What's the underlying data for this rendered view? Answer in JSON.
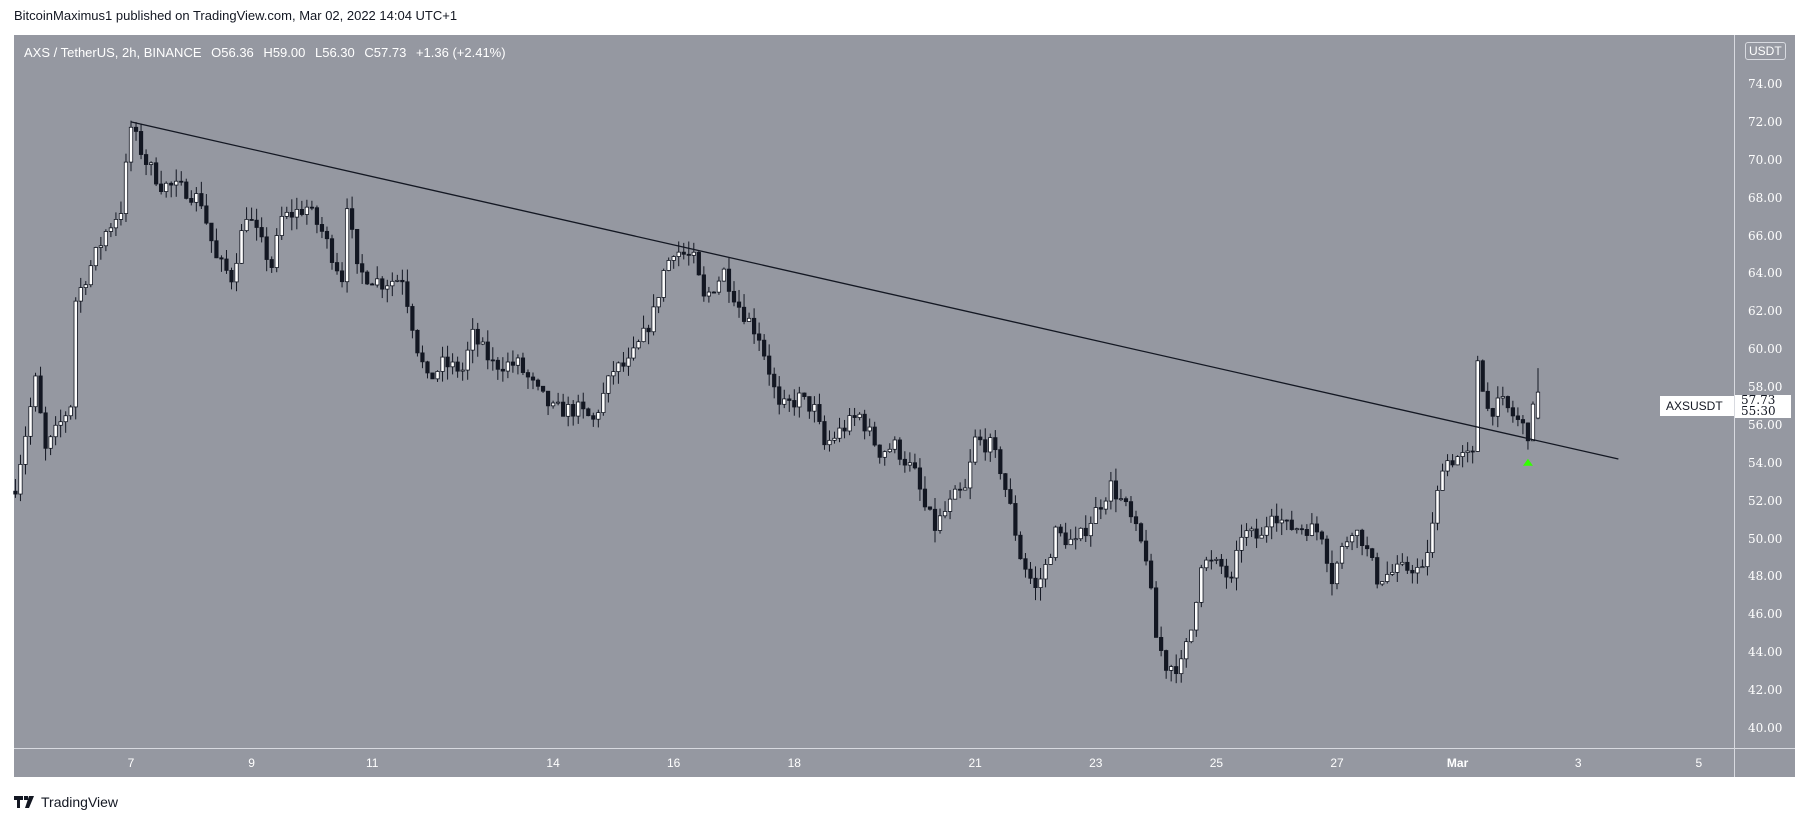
{
  "header": {
    "published": "BitcoinMaximus1 published on TradingView.com, Mar 02, 2022 14:04 UTC+1"
  },
  "legend": {
    "symbol": "AXS / TetherUS, 2h, BINANCE",
    "o_key": "O",
    "o": "56.36",
    "h_key": "H",
    "h": "59.00",
    "l_key": "L",
    "l": "56.30",
    "c_key": "C",
    "c": "57.73",
    "change": "+1.36 (+2.41%)"
  },
  "currency_badge": "USDT",
  "last_price_tag": {
    "symbol": "AXSUSDT",
    "price": "57.73",
    "countdown": "55:30"
  },
  "footer": {
    "brand": "TradingView"
  },
  "colors": {
    "background": "#9598a1",
    "up_body": "#ffffff",
    "down_body": "#131722",
    "wick": "#131722",
    "trendline": "#131722",
    "marker": "#33ff00"
  },
  "chart_data": {
    "type": "candlestick",
    "title": "AXS / TetherUS, 2h, BINANCE",
    "interval": "2h",
    "ylim": [
      39,
      76
    ],
    "y_ticks": [
      "74.00",
      "72.00",
      "70.00",
      "68.00",
      "66.00",
      "64.00",
      "62.00",
      "60.00",
      "58.00",
      "56.00",
      "54.00",
      "52.00",
      "50.00",
      "48.00",
      "46.00",
      "44.00",
      "42.00",
      "40.00"
    ],
    "x_ticks": [
      {
        "label": "7",
        "date": "2022-02-07T00:00"
      },
      {
        "label": "9",
        "date": "2022-02-09T00:00"
      },
      {
        "label": "11",
        "date": "2022-02-11T00:00"
      },
      {
        "label": "14",
        "date": "2022-02-14T00:00"
      },
      {
        "label": "16",
        "date": "2022-02-16T00:00"
      },
      {
        "label": "18",
        "date": "2022-02-18T00:00"
      },
      {
        "label": "21",
        "date": "2022-02-21T00:00"
      },
      {
        "label": "23",
        "date": "2022-02-23T00:00"
      },
      {
        "label": "25",
        "date": "2022-02-25T00:00"
      },
      {
        "label": "27",
        "date": "2022-02-27T00:00"
      },
      {
        "label": "Mar",
        "date": "2022-03-01T00:00",
        "bold": true
      },
      {
        "label": "3",
        "date": "2022-03-03T00:00"
      },
      {
        "label": "5",
        "date": "2022-03-05T00:00"
      }
    ],
    "approx_close_path": [
      [
        "2022-02-05T02:00",
        52.8
      ],
      [
        "2022-02-05T10:00",
        58.3
      ],
      [
        "2022-02-05T14:00",
        54.6
      ],
      [
        "2022-02-06T00:00",
        57.1
      ],
      [
        "2022-02-06T02:00",
        62.6
      ],
      [
        "2022-02-06T08:00",
        64.4
      ],
      [
        "2022-02-06T14:00",
        66.2
      ],
      [
        "2022-02-06T20:00",
        67.4
      ],
      [
        "2022-02-07T00:00",
        71.7
      ],
      [
        "2022-02-07T06:00",
        69.9
      ],
      [
        "2022-02-07T12:00",
        68.7
      ],
      [
        "2022-02-07T22:00",
        68.4
      ],
      [
        "2022-02-08T04:00",
        67.8
      ],
      [
        "2022-02-08T10:00",
        64.7
      ],
      [
        "2022-02-08T16:00",
        63.8
      ],
      [
        "2022-02-08T22:00",
        67.2
      ],
      [
        "2022-02-09T08:00",
        64.4
      ],
      [
        "2022-02-09T12:00",
        66.9
      ],
      [
        "2022-02-09T22:00",
        67.5
      ],
      [
        "2022-02-10T04:00",
        66.2
      ],
      [
        "2022-02-10T12:00",
        63.8
      ],
      [
        "2022-02-10T14:00",
        67.8
      ],
      [
        "2022-02-10T18:00",
        64.1
      ],
      [
        "2022-02-11T04:00",
        63.5
      ],
      [
        "2022-02-11T12:00",
        63.8
      ],
      [
        "2022-02-11T18:00",
        60.1
      ],
      [
        "2022-02-11T22:00",
        58.3
      ],
      [
        "2022-02-12T04:00",
        59.2
      ],
      [
        "2022-02-12T12:00",
        58.9
      ],
      [
        "2022-02-12T16:00",
        60.7
      ],
      [
        "2022-02-13T00:00",
        59.2
      ],
      [
        "2022-02-13T10:00",
        59.2
      ],
      [
        "2022-02-13T18:00",
        57.7
      ],
      [
        "2022-02-14T00:00",
        56.8
      ],
      [
        "2022-02-14T10:00",
        56.8
      ],
      [
        "2022-02-14T16:00",
        56.2
      ],
      [
        "2022-02-15T00:00",
        58.9
      ],
      [
        "2022-02-15T06:00",
        59.2
      ],
      [
        "2022-02-15T12:00",
        60.7
      ],
      [
        "2022-02-15T16:00",
        61.9
      ],
      [
        "2022-02-15T20:00",
        64.1
      ],
      [
        "2022-02-16T00:00",
        65.3
      ],
      [
        "2022-02-16T08:00",
        64.7
      ],
      [
        "2022-02-16T12:00",
        62.6
      ],
      [
        "2022-02-16T20:00",
        64.1
      ],
      [
        "2022-02-17T02:00",
        62.3
      ],
      [
        "2022-02-17T10:00",
        60.7
      ],
      [
        "2022-02-17T14:00",
        58.9
      ],
      [
        "2022-02-17T18:00",
        56.8
      ],
      [
        "2022-02-18T02:00",
        57.4
      ],
      [
        "2022-02-18T08:00",
        56.8
      ],
      [
        "2022-02-18T12:00",
        54.9
      ],
      [
        "2022-02-18T20:00",
        55.9
      ],
      [
        "2022-02-19T02:00",
        56.5
      ],
      [
        "2022-02-19T10:00",
        54.6
      ],
      [
        "2022-02-19T16:00",
        54.9
      ],
      [
        "2022-02-20T00:00",
        53.4
      ],
      [
        "2022-02-20T04:00",
        51.6
      ],
      [
        "2022-02-20T08:00",
        50.6
      ],
      [
        "2022-02-20T16:00",
        52.2
      ],
      [
        "2022-02-20T20:00",
        52.5
      ],
      [
        "2022-02-21T00:00",
        55.2
      ],
      [
        "2022-02-21T06:00",
        54.9
      ],
      [
        "2022-02-21T10:00",
        53.7
      ],
      [
        "2022-02-21T14:00",
        51.6
      ],
      [
        "2022-02-21T18:00",
        49.1
      ],
      [
        "2022-02-22T00:00",
        47.3
      ],
      [
        "2022-02-22T04:00",
        48.5
      ],
      [
        "2022-02-22T08:00",
        50.3
      ],
      [
        "2022-02-22T16:00",
        49.7
      ],
      [
        "2022-02-22T22:00",
        51.0
      ],
      [
        "2022-02-23T06:00",
        52.8
      ],
      [
        "2022-02-23T12:00",
        51.6
      ],
      [
        "2022-02-23T20:00",
        49.1
      ],
      [
        "2022-02-24T00:00",
        44.8
      ],
      [
        "2022-02-24T04:00",
        43.3
      ],
      [
        "2022-02-24T10:00",
        43.3
      ],
      [
        "2022-02-24T14:00",
        45.2
      ],
      [
        "2022-02-24T18:00",
        48.8
      ],
      [
        "2022-02-25T02:00",
        48.5
      ],
      [
        "2022-02-25T06:00",
        47.6
      ],
      [
        "2022-02-25T10:00",
        50.3
      ],
      [
        "2022-02-25T18:00",
        50.0
      ],
      [
        "2022-02-25T22:00",
        51.6
      ],
      [
        "2022-02-26T04:00",
        50.6
      ],
      [
        "2022-02-26T12:00",
        50.6
      ],
      [
        "2022-02-26T18:00",
        50.3
      ],
      [
        "2022-02-26T22:00",
        47.9
      ],
      [
        "2022-02-27T02:00",
        49.4
      ],
      [
        "2022-02-27T06:00",
        50.6
      ],
      [
        "2022-02-27T10:00",
        50.0
      ],
      [
        "2022-02-27T16:00",
        47.9
      ],
      [
        "2022-02-27T22:00",
        48.2
      ],
      [
        "2022-02-28T06:00",
        48.5
      ],
      [
        "2022-02-28T10:00",
        48.2
      ],
      [
        "2022-02-28T14:00",
        50.6
      ],
      [
        "2022-02-28T18:00",
        54.0
      ],
      [
        "2022-03-01T00:00",
        54.3
      ],
      [
        "2022-03-01T06:00",
        54.3
      ],
      [
        "2022-03-01T08:00",
        59.5
      ],
      [
        "2022-03-01T12:00",
        56.8
      ],
      [
        "2022-03-01T18:00",
        57.1
      ],
      [
        "2022-03-02T00:00",
        56.2
      ],
      [
        "2022-03-02T04:00",
        55.6
      ],
      [
        "2022-03-02T08:00",
        57.73
      ]
    ],
    "last_candle": {
      "open": 56.36,
      "high": 59.0,
      "low": 56.3,
      "close": 57.73
    },
    "trendline": {
      "start": [
        "2022-02-07T00:00",
        72.0
      ],
      "end": [
        "2022-03-03T16:00",
        54.2
      ]
    },
    "marker": {
      "shape": "triangle-up",
      "date": "2022-03-02T04:00",
      "price": 54.0
    },
    "grid": false,
    "legend_position": "top-left"
  }
}
